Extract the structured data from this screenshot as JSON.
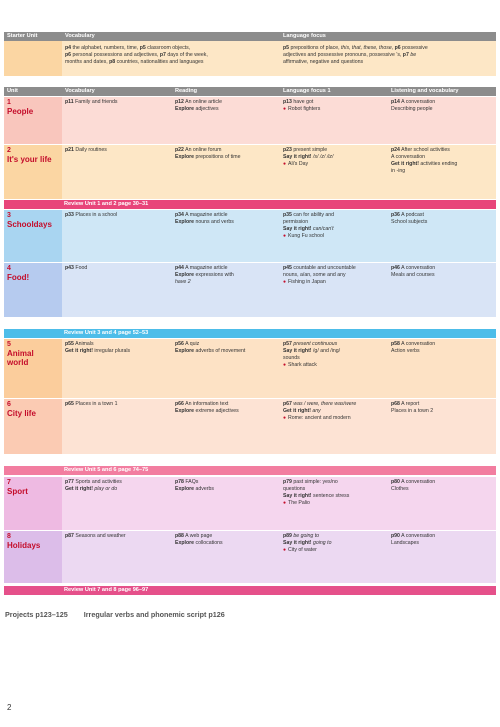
{
  "starter": {
    "unit_label": "Starter Unit",
    "vocab_header": "Vocabulary",
    "lang_header": "Language focus",
    "vocab": [
      {
        "p": "p4",
        "t": " the alphabet, numbers, time, "
      },
      {
        "p": "p5",
        "t": " classroom objects,"
      }
    ],
    "vocab_text_1": " the alphabet, numbers, time, ",
    "vocab_p_1": "p4",
    "vocab_p_2": "p5",
    "vocab_text_2": " classroom objects,",
    "vocab_p_3": "p6",
    "vocab_text_3": " personal possessions and adjectives, ",
    "vocab_p_4": "p7",
    "vocab_text_4": " days of the week,",
    "vocab_text_5": "months and dates, ",
    "vocab_p_5": "p8",
    "vocab_text_6": " countries, nationalities and languages",
    "lang_p_1": "p5",
    "lang_text_1": " prepositions of place, ",
    "lang_it_1": "this, that, these, those,",
    "lang_p_2": "p6",
    "lang_text_2": " possessive",
    "lang_text_3": "adjectives and possessive pronouns, possessive 's, ",
    "lang_p_3": "p7",
    "lang_it_3": "be",
    "lang_text_4": "affirmative, negative and questions"
  },
  "headers": {
    "unit": "Unit",
    "vocabulary": "Vocabulary",
    "reading": "Reading",
    "language": "Language focus 1",
    "listening": "Listening and vocabulary"
  },
  "units": [
    {
      "num": "1",
      "name": "People",
      "vocab_p": "p11",
      "vocab_t": " Family and friends",
      "vocab_extra": "",
      "read_p": "p12",
      "read_t": " An online article",
      "read_explore": "Explore",
      "read_explore_t": " adjectives",
      "lang_lines": [
        {
          "p": "p13",
          "t": " have got"
        },
        {
          "video": "Robot fighters"
        }
      ],
      "listen_p": "p14",
      "listen_t": " A conversation",
      "listen_l2": "Describing people"
    },
    {
      "num": "2",
      "name": "It's your life",
      "vocab_p": "p21",
      "vocab_t": " Daily routines",
      "read_p": "p22",
      "read_t": " An online forum",
      "read_explore": "Explore",
      "read_explore_t": " prepositions of time",
      "lang_p": "p23",
      "lang_t": " present simple",
      "lang_say": "Say it right!",
      "lang_say_t": " /s/ /z/ /iz/",
      "lang_video": "Ali's Day",
      "listen_p": "p24",
      "listen_t": " After school activities",
      "listen_l2": "A conversation",
      "listen_get": "Get it right!",
      "listen_get_t": " activities ending",
      "listen_l4": "in -ing"
    },
    {
      "num": "3",
      "name": "Schooldays",
      "vocab_p": "p33",
      "vocab_t": " Places in a school",
      "read_p": "p34",
      "read_t": " A magazine article",
      "read_explore": "Explore",
      "read_explore_t": " nouns and verbs",
      "lang_p": "p35",
      "lang_t": " can for ability and",
      "lang_l2": "permission",
      "lang_say": "Say it right!",
      "lang_say_t": " can/can't",
      "lang_video": "Kung Fu school",
      "listen_p": "p36",
      "listen_t": " A podcast",
      "listen_l2": "School subjects"
    },
    {
      "num": "4",
      "name": "Food!",
      "vocab_p": "p43",
      "vocab_t": " Food",
      "read_p": "p44",
      "read_t": " A magazine article",
      "read_explore": "Explore",
      "read_explore_t": " expressions with",
      "read_l3": "have 2",
      "lang_p": "p45",
      "lang_t": " countable and uncountable",
      "lang_l2": "nouns, a/an, some and any",
      "lang_video": "Fishing in Japan",
      "listen_p": "p46",
      "listen_t": " A conversation",
      "listen_l2": "Meals and courses"
    },
    {
      "num": "5",
      "name": "Animal world",
      "name_l1": "Animal",
      "name_l2": "world",
      "vocab_p": "p55",
      "vocab_t": " Animals",
      "vocab_get": "Get it right!",
      "vocab_get_t": " irregular plurals",
      "read_p": "p56",
      "read_t": " A quiz",
      "read_explore": "Explore",
      "read_explore_t": " adverbs of movement",
      "lang_p": "p57",
      "lang_t": " present continuous",
      "lang_say": "Say it right!",
      "lang_say_t": " /g/ and /ing/",
      "lang_l3": "sounds",
      "lang_video": "Shark attack",
      "listen_p": "p58",
      "listen_t": " A conversation",
      "listen_l2": "Action verbs"
    },
    {
      "num": "6",
      "name": "City life",
      "vocab_p": "p65",
      "vocab_t": " Places in a town 1",
      "read_p": "p66",
      "read_t": " An information text",
      "read_explore": "Explore",
      "read_explore_t": " extreme adjectives",
      "lang_p": "p67",
      "lang_t": " was / were, there was/were",
      "lang_get": "Get it right!",
      "lang_get_t": " any",
      "lang_video": "Rome: ancient and modern",
      "listen_p": "p68",
      "listen_t": " A report",
      "listen_l2": "Places in a town 2"
    },
    {
      "num": "7",
      "name": "Sport",
      "vocab_p": "p77",
      "vocab_t": " Sports and activities",
      "vocab_get": "Get it right!",
      "vocab_get_t": " play or do",
      "read_p": "p78",
      "read_t": " FAQs",
      "read_explore": "Explore",
      "read_explore_t": " adverbs",
      "lang_p": "p79",
      "lang_t": " past simple: yes/no",
      "lang_l2": "questions",
      "lang_say": "Say it right!",
      "lang_say_t": " sentence stress",
      "lang_video": "The Palio",
      "listen_p": "p80",
      "listen_t": " A conversation",
      "listen_l2": "Clothes"
    },
    {
      "num": "8",
      "name": "Holidays",
      "vocab_p": "p87",
      "vocab_t": " Seasons and weather",
      "read_p": "p88",
      "read_t": " A web page",
      "read_explore": "Explore",
      "read_explore_t": " collocations",
      "lang_p": "p89",
      "lang_t": " be going to",
      "lang_say": "Say it right!",
      "lang_say_t": " going to",
      "lang_video": "City of water",
      "listen_p": "p90",
      "listen_t": " A conversation",
      "listen_l2": "Landscapes"
    }
  ],
  "reviews": [
    "Review Unit 1 and 2 page 30–31",
    "Review Unit 3 and 4 page 52–53",
    "Review Unit 5 and 6 page 74–75",
    "Review Unit 7 and 8 page 96–97"
  ],
  "footer": {
    "projects": "Projects p123–125",
    "irregular": "Irregular verbs and phonemic script p126"
  },
  "page_number": "2",
  "colors": {
    "unit1": "#fcdcd6",
    "unit2": "#fde7c6",
    "unit3": "#cfe7f6",
    "unit4": "#d9e4f6",
    "unit5": "#fde2c5",
    "unit6": "#fde3d4",
    "unit7": "#f5d6ee",
    "unit8": "#ecd9f2",
    "review_bar": "#4dbde9",
    "header_gray": "#8c8c8c",
    "unit_text": "#c40d2b"
  }
}
